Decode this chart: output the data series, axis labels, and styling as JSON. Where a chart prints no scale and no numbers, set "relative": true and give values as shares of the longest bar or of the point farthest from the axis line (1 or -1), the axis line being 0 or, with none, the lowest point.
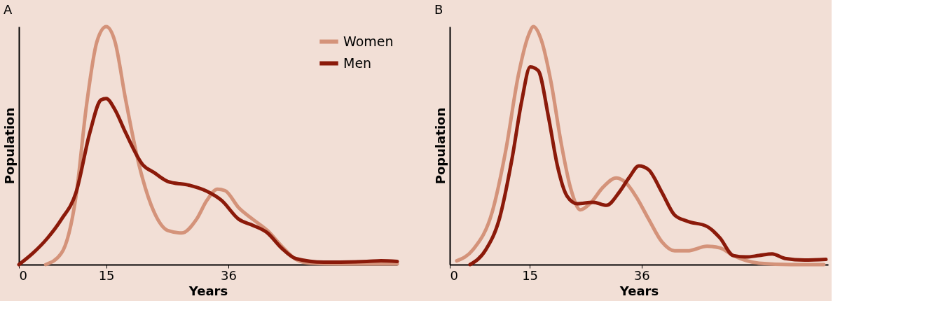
{
  "chart_data": [
    {
      "type": "line",
      "title": "A",
      "xlabel": "Years",
      "ylabel": "Population",
      "relative": true,
      "xlim": [
        0,
        65
      ],
      "xticks": [
        0,
        15,
        36
      ],
      "tick_labels": "x",
      "legend": "top right",
      "grid": false,
      "marker": "none",
      "line_style": "solid",
      "series": [
        {
          "name": "Women",
          "color": "#d4937a",
          "x": [
            4.6,
            7.3,
            9.8,
            11.6,
            13.4,
            15,
            16.5,
            18.3,
            20.7,
            23.2,
            25.6,
            28,
            30.5,
            32.3,
            34.1,
            35.4,
            37.8,
            40.2,
            42.7,
            45.1,
            47.6,
            50,
            54.9,
            65
          ],
          "values": [
            0,
            0.048,
            0.286,
            0.667,
            0.937,
            1,
            0.937,
            0.698,
            0.413,
            0.222,
            0.143,
            0.133,
            0.19,
            0.27,
            0.317,
            0.311,
            0.238,
            0.19,
            0.143,
            0.079,
            0.022,
            0.006,
            0.003,
            0.003
          ]
        },
        {
          "name": "Men",
          "color": "#8b1a0a",
          "x": [
            0,
            2.4,
            4.9,
            7.3,
            9.8,
            12.2,
            14.1,
            15,
            16.5,
            18.3,
            21.3,
            23.2,
            25.6,
            29.3,
            32.3,
            34.8,
            37.8,
            40.2,
            42.7,
            45.1,
            47.6,
            52.4,
            59.8,
            62.2,
            65
          ],
          "values": [
            0,
            0.048,
            0.111,
            0.19,
            0.302,
            0.556,
            0.692,
            0.698,
            0.651,
            0.556,
            0.419,
            0.387,
            0.349,
            0.333,
            0.308,
            0.27,
            0.19,
            0.165,
            0.133,
            0.07,
            0.025,
            0.01,
            0.013,
            0.016,
            0.013
          ]
        }
      ]
    },
    {
      "type": "line",
      "title": "B",
      "xlabel": "Years",
      "ylabel": "Population",
      "relative": true,
      "xlim": [
        0,
        71
      ],
      "xticks": [
        0,
        15,
        36
      ],
      "tick_labels": "x",
      "grid": false,
      "marker": "none",
      "line_style": "solid",
      "series": [
        {
          "color": "#d4937a",
          "x": [
            1.3,
            4.4,
            8,
            10.5,
            12.9,
            14.8,
            15.7,
            17.2,
            19,
            20.9,
            22.7,
            24.5,
            26.3,
            28.8,
            31.2,
            33,
            34.9,
            37.3,
            39.8,
            42.2,
            44.6,
            48.3,
            50.7,
            53.2,
            58,
            64.1,
            70.2
          ],
          "values": [
            0.016,
            0.064,
            0.224,
            0.479,
            0.799,
            0.965,
            1,
            0.942,
            0.767,
            0.511,
            0.319,
            0.23,
            0.256,
            0.326,
            0.364,
            0.345,
            0.288,
            0.192,
            0.096,
            0.058,
            0.058,
            0.077,
            0.07,
            0.038,
            0.006,
            0,
            0
          ]
        },
        {
          "color": "#8b1a0a",
          "x": [
            3.8,
            6.8,
            9.3,
            11.7,
            13.5,
            15.1,
            16.6,
            18.5,
            20.2,
            22,
            23.9,
            26.9,
            29.4,
            31.8,
            33.7,
            35.5,
            37.3,
            39.8,
            42.2,
            44.6,
            48.3,
            50.7,
            53.2,
            55.6,
            58,
            60.5,
            62.9,
            66.6,
            70.6
          ],
          "values": [
            0,
            0.064,
            0.192,
            0.447,
            0.687,
            0.831,
            0.815,
            0.623,
            0.415,
            0.288,
            0.256,
            0.262,
            0.249,
            0.304,
            0.367,
            0.415,
            0.399,
            0.304,
            0.208,
            0.182,
            0.16,
            0.112,
            0.038,
            0.032,
            0.038,
            0.045,
            0.026,
            0.019,
            0.022
          ]
        }
      ]
    }
  ]
}
